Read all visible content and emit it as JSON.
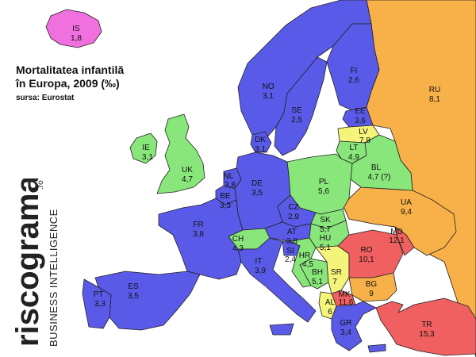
{
  "title": {
    "line1": "Mortalitatea infantilă",
    "line2": "în Europa, 2009 (‰)",
    "source": "sursa: Eurostat"
  },
  "brand": {
    "wordmark": "riscograma",
    "tld": ".ro",
    "tagline": "BUSINESS INTELLIGENCE"
  },
  "colors": {
    "pink": "#f070e0",
    "blue": "#5a5ae8",
    "green": "#88e67a",
    "yellow": "#f4f37a",
    "orange": "#f8b048",
    "red": "#f06060"
  },
  "chart_data": {
    "type": "choropleth",
    "title": "Mortalitatea infantilă în Europa, 2009 (‰)",
    "regions": [
      {
        "code": "IS",
        "value": "1,8",
        "color": "pink"
      },
      {
        "code": "FI",
        "value": "2,6",
        "color": "blue"
      },
      {
        "code": "NO",
        "value": "3,1",
        "color": "blue"
      },
      {
        "code": "SE",
        "value": "2,5",
        "color": "blue"
      },
      {
        "code": "RU",
        "value": "8,1",
        "color": "orange"
      },
      {
        "code": "EE",
        "value": "3,6",
        "color": "blue"
      },
      {
        "code": "LV",
        "value": "7,8",
        "color": "yellow"
      },
      {
        "code": "LT",
        "value": "4,9",
        "color": "green"
      },
      {
        "code": "DK",
        "value": "3,1",
        "color": "blue"
      },
      {
        "code": "IE",
        "value": "3,1",
        "color": "green"
      },
      {
        "code": "UK",
        "value": "4,7",
        "color": "green"
      },
      {
        "code": "BL",
        "value": "4,7 (?)",
        "color": "green"
      },
      {
        "code": "NL",
        "value": "3,8",
        "color": "blue"
      },
      {
        "code": "BE",
        "value": "3,3",
        "color": "blue"
      },
      {
        "code": "DE",
        "value": "3,5",
        "color": "blue"
      },
      {
        "code": "PL",
        "value": "5,6",
        "color": "green"
      },
      {
        "code": "UA",
        "value": "9,4",
        "color": "orange"
      },
      {
        "code": "CZ",
        "value": "2,9",
        "color": "blue"
      },
      {
        "code": "SK",
        "value": "5,7",
        "color": "green"
      },
      {
        "code": "FR",
        "value": "3,8",
        "color": "blue"
      },
      {
        "code": "AT",
        "value": "3,8",
        "color": "blue"
      },
      {
        "code": "HU",
        "value": "5,1",
        "color": "green"
      },
      {
        "code": "MD",
        "value": "12,1",
        "color": "red"
      },
      {
        "code": "CH",
        "value": "4,3",
        "color": "green"
      },
      {
        "code": "SI",
        "value": "2,4",
        "color": "blue"
      },
      {
        "code": "HR",
        "value": "4,5",
        "color": "green"
      },
      {
        "code": "RO",
        "value": "10,1",
        "color": "red"
      },
      {
        "code": "IT",
        "value": "3,9",
        "color": "blue"
      },
      {
        "code": "BH",
        "value": "5,1",
        "color": "green"
      },
      {
        "code": "SR",
        "value": "7",
        "color": "yellow"
      },
      {
        "code": "BG",
        "value": "9",
        "color": "orange"
      },
      {
        "code": "MK",
        "value": "11,6",
        "color": "red"
      },
      {
        "code": "AL",
        "value": "6",
        "color": "yellow"
      },
      {
        "code": "PT",
        "value": "3,3",
        "color": "blue"
      },
      {
        "code": "ES",
        "value": "3,5",
        "color": "blue"
      },
      {
        "code": "GR",
        "value": "3,4",
        "color": "blue"
      },
      {
        "code": "TR",
        "value": "15,3",
        "color": "red"
      }
    ]
  }
}
